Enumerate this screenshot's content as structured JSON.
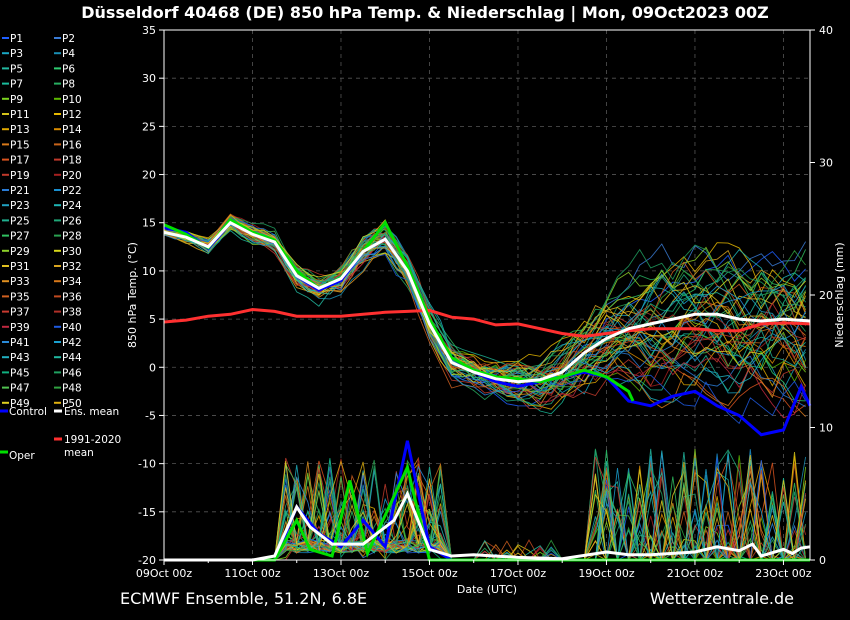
{
  "header": {
    "title": "Düsseldorf 40468 (DE)  850 hPa Temp. & Niederschlag | Mon, 09Oct2023 00Z"
  },
  "footer": {
    "left": "ECMWF Ensemble, 51.2N, 6.8E",
    "right": "Wetterzentrale.de"
  },
  "legend": {
    "members": [
      "P1",
      "P2",
      "P3",
      "P4",
      "P5",
      "P6",
      "P7",
      "P8",
      "P9",
      "P10",
      "P11",
      "P12",
      "P13",
      "P14",
      "P15",
      "P16",
      "P17",
      "P18",
      "P19",
      "P20",
      "P21",
      "P22",
      "P23",
      "P24",
      "P25",
      "P26",
      "P27",
      "P28",
      "P29",
      "P30",
      "P31",
      "P32",
      "P33",
      "P34",
      "P35",
      "P36",
      "P37",
      "P38",
      "P39",
      "P40",
      "P41",
      "P42",
      "P43",
      "P44",
      "P45",
      "P46",
      "P47",
      "P48",
      "P49",
      "P50"
    ],
    "member_colors": [
      "#1f5fff",
      "#3a7bd5",
      "#19a7c4",
      "#1a8fb5",
      "#22b8a0",
      "#2ecc71",
      "#1abc9c",
      "#27ae60",
      "#7bd31e",
      "#5cb800",
      "#d4c31a",
      "#e6b800",
      "#e0a800",
      "#d98c00",
      "#d97a1a",
      "#c8641a",
      "#d9531e",
      "#c0392b",
      "#c0392b",
      "#a62020",
      "#2a7bd5",
      "#1a8fcf",
      "#20a0c0",
      "#1fb5b5",
      "#20b090",
      "#20a878",
      "#30c060",
      "#2aa050",
      "#8ed12a",
      "#d8d81a",
      "#e0c020",
      "#d9a520",
      "#e09020",
      "#d8781a",
      "#d06020",
      "#c04a20",
      "#c83a30",
      "#b03028",
      "#c02840",
      "#1e5ae0",
      "#2a8ad8",
      "#1aa0d0",
      "#20b0c0",
      "#20b8a0",
      "#10b080",
      "#20a060",
      "#50c050",
      "#30a040",
      "#e0d020",
      "#e0b010"
    ],
    "control_label": "Control",
    "ensmean_label": "Ens. mean",
    "clim_label_1": "1991-2020",
    "clim_label_2": "mean",
    "oper_label": "Oper",
    "control_color": "#0000ff",
    "ensmean_color": "#ffffff",
    "clim_color": "#ff3030",
    "oper_color": "#00e000"
  },
  "chart_data": {
    "type": "line",
    "xlabel": "Date (UTC)",
    "ylabel": "850 hPa Temp. (°C)",
    "y2label": "Niederschlag (mm)",
    "ylim": [
      -20,
      35
    ],
    "y2lim": [
      0,
      40
    ],
    "xlim_days": [
      0,
      14.6
    ],
    "grid": true,
    "x_ticks": [
      "09Oct 00z",
      "11Oct 00z",
      "13Oct 00z",
      "15Oct 00z",
      "17Oct 00z",
      "19Oct 00z",
      "21Oct 00z",
      "23Oct 00z"
    ],
    "y_ticks": [
      -20,
      -15,
      -10,
      -5,
      0,
      5,
      10,
      15,
      20,
      25,
      30,
      35
    ],
    "y2_ticks": [
      0,
      10,
      20,
      30,
      40
    ],
    "control_temp": [
      [
        0,
        14.5
      ],
      [
        0.5,
        14
      ],
      [
        1,
        12.3
      ],
      [
        1.5,
        15
      ],
      [
        2,
        13.8
      ],
      [
        2.5,
        13
      ],
      [
        3,
        9.5
      ],
      [
        3.5,
        8
      ],
      [
        4,
        9
      ],
      [
        4.5,
        12
      ],
      [
        5,
        13.3
      ],
      [
        5.5,
        10
      ],
      [
        6,
        5
      ],
      [
        6.5,
        1
      ],
      [
        7,
        -0.5
      ],
      [
        7.5,
        -1.5
      ],
      [
        8,
        -2
      ],
      [
        8.5,
        -1.5
      ],
      [
        9,
        -1
      ],
      [
        9.5,
        -0.5
      ],
      [
        10,
        -1
      ],
      [
        10.5,
        -3.5
      ],
      [
        11,
        -4
      ],
      [
        11.5,
        -3
      ],
      [
        12,
        -2.5
      ],
      [
        12.5,
        -4
      ],
      [
        13,
        -5
      ],
      [
        13.5,
        -7
      ],
      [
        14,
        -6.5
      ],
      [
        14.4,
        -2
      ],
      [
        14.6,
        -4
      ]
    ],
    "ensmean_temp": [
      [
        0,
        14
      ],
      [
        0.5,
        13.5
      ],
      [
        1,
        12.5
      ],
      [
        1.5,
        15
      ],
      [
        2,
        13.8
      ],
      [
        2.5,
        13
      ],
      [
        3,
        9.5
      ],
      [
        3.5,
        8.2
      ],
      [
        4,
        9.2
      ],
      [
        4.5,
        12
      ],
      [
        5,
        13.3
      ],
      [
        5.5,
        10
      ],
      [
        6,
        4.5
      ],
      [
        6.5,
        0.5
      ],
      [
        7,
        -0.5
      ],
      [
        7.5,
        -1.2
      ],
      [
        8,
        -1.5
      ],
      [
        8.5,
        -1.3
      ],
      [
        9,
        -0.5
      ],
      [
        9.5,
        1.5
      ],
      [
        10,
        3
      ],
      [
        10.5,
        4
      ],
      [
        11,
        4.5
      ],
      [
        11.5,
        5
      ],
      [
        12,
        5.5
      ],
      [
        12.5,
        5.5
      ],
      [
        13,
        5
      ],
      [
        13.5,
        4.8
      ],
      [
        14,
        5
      ],
      [
        14.6,
        4.8
      ]
    ],
    "oper_temp": [
      [
        0,
        14.8
      ],
      [
        0.5,
        13.8
      ],
      [
        1,
        12.4
      ],
      [
        1.5,
        15.3
      ],
      [
        2,
        14
      ],
      [
        2.5,
        13.2
      ],
      [
        3,
        10
      ],
      [
        3.5,
        8.2
      ],
      [
        4,
        9.3
      ],
      [
        4.5,
        12
      ],
      [
        5,
        15
      ],
      [
        5.5,
        10.5
      ],
      [
        6,
        5
      ],
      [
        6.5,
        1
      ],
      [
        7,
        -0.3
      ],
      [
        7.5,
        -1
      ],
      [
        8,
        -1.2
      ],
      [
        8.5,
        -1.5
      ],
      [
        9,
        -1
      ],
      [
        9.5,
        -0.3
      ],
      [
        10,
        -1
      ],
      [
        10.5,
        -2.5
      ],
      [
        10.6,
        -3.5
      ]
    ],
    "clim_mean_temp": [
      [
        0,
        4.7
      ],
      [
        0.5,
        4.9
      ],
      [
        1,
        5.3
      ],
      [
        1.5,
        5.5
      ],
      [
        2,
        6
      ],
      [
        2.5,
        5.8
      ],
      [
        3,
        5.3
      ],
      [
        3.5,
        5.3
      ],
      [
        4,
        5.3
      ],
      [
        4.5,
        5.5
      ],
      [
        5,
        5.7
      ],
      [
        5.5,
        5.8
      ],
      [
        6,
        5.9
      ],
      [
        6.5,
        5.2
      ],
      [
        7,
        5
      ],
      [
        7.5,
        4.4
      ],
      [
        8,
        4.5
      ],
      [
        8.5,
        4
      ],
      [
        9,
        3.5
      ],
      [
        9.5,
        3.2
      ],
      [
        10,
        3.5
      ],
      [
        10.5,
        3.8
      ],
      [
        11,
        4
      ],
      [
        11.5,
        4
      ],
      [
        12,
        4
      ],
      [
        12.5,
        3.8
      ],
      [
        13,
        3.8
      ],
      [
        13.5,
        4.5
      ],
      [
        14,
        4.6
      ],
      [
        14.6,
        4.5
      ]
    ],
    "control_precip_mm": [
      [
        0,
        0
      ],
      [
        2,
        0
      ],
      [
        2.5,
        0
      ],
      [
        3,
        4
      ],
      [
        3.5,
        2
      ],
      [
        4,
        1
      ],
      [
        4.5,
        3
      ],
      [
        5,
        1
      ],
      [
        5.5,
        9
      ],
      [
        6,
        1
      ],
      [
        6.5,
        0
      ],
      [
        14.6,
        0
      ]
    ],
    "ensmean_precip_mm": [
      [
        0,
        0
      ],
      [
        2,
        0
      ],
      [
        2.5,
        0.3
      ],
      [
        3,
        4
      ],
      [
        3.3,
        2.5
      ],
      [
        3.8,
        1.2
      ],
      [
        4.5,
        1.2
      ],
      [
        5.2,
        3
      ],
      [
        5.5,
        5
      ],
      [
        6,
        0.8
      ],
      [
        6.5,
        0.3
      ],
      [
        7,
        0.4
      ],
      [
        8,
        0.2
      ],
      [
        9,
        0.1
      ],
      [
        10,
        0.6
      ],
      [
        10.5,
        0.4
      ],
      [
        11,
        0.4
      ],
      [
        12,
        0.6
      ],
      [
        12.5,
        1
      ],
      [
        13,
        0.7
      ],
      [
        13.3,
        1.2
      ],
      [
        13.5,
        0.3
      ],
      [
        14,
        0.8
      ],
      [
        14.2,
        0.5
      ],
      [
        14.4,
        0.9
      ],
      [
        14.6,
        1
      ]
    ],
    "oper_precip_mm": [
      [
        0,
        0
      ],
      [
        2.5,
        0
      ],
      [
        3,
        3
      ],
      [
        3.3,
        0.8
      ],
      [
        3.8,
        0.3
      ],
      [
        4.2,
        6
      ],
      [
        4.6,
        0.5
      ],
      [
        5.5,
        7
      ],
      [
        6,
        0
      ],
      [
        14.6,
        0
      ]
    ]
  }
}
